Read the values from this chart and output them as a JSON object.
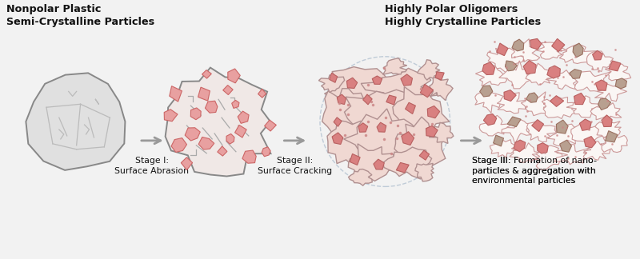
{
  "bg_color": "#f2f2f2",
  "title_left": "Nonpolar Plastic\nSemi-Crystalline Particles",
  "title_right": "Highly Polar Oligomers\nHighly Crystalline Particles",
  "label1": "Stage I:\nSurface Abrasion",
  "label2": "Stage II:\nSurface Cracking",
  "label3": "Stage III: Formation of nano-\nparticles & aggregation with\nenvironmental particles",
  "particle_fill": "#e0e0e0",
  "particle_edge": "#888888",
  "stage2_fill": "#f0e8e6",
  "stage2_edge": "#888888",
  "blob_fill": "#f0d4cc",
  "blob_edge": "#b08888",
  "blob_dashed_edge": "#aabbcc",
  "white_frag_fill": "#faf6f4",
  "white_frag_edge": "#cc9999",
  "pink_fill": "#d98080",
  "pink_edge": "#b86060",
  "pink_small_fill": "#e8a0a0",
  "pink_small_edge": "#cc6666",
  "tan_fill": "#b8a090",
  "tan_edge": "#9a7060",
  "arrow_color": "#999999",
  "text_color": "#111111",
  "crack_color": "#aaaaaa"
}
